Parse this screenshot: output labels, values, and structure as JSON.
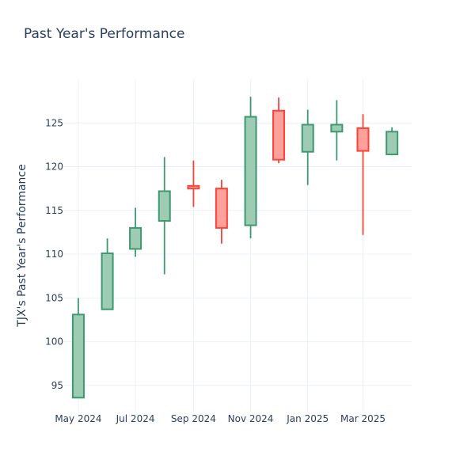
{
  "chart_data": {
    "type": "candlestick",
    "title": "Past Year's Performance",
    "ylabel": "TJX's Past Year's Performance",
    "xlabel": "",
    "ylim": [
      92,
      130
    ],
    "xlim": [
      "2024-04-15",
      "2025-04-22"
    ],
    "yticks": [
      95,
      100,
      105,
      110,
      115,
      120,
      125
    ],
    "xticks": [
      {
        "date": "2024-05-01",
        "label": "May 2024"
      },
      {
        "date": "2024-07-01",
        "label": "Jul 2024"
      },
      {
        "date": "2024-09-01",
        "label": "Sep 2024"
      },
      {
        "date": "2024-11-01",
        "label": "Nov 2024"
      },
      {
        "date": "2025-01-01",
        "label": "Jan 2025"
      },
      {
        "date": "2025-03-01",
        "label": "Mar 2025"
      }
    ],
    "grid": true,
    "increasing_color": "#3d9970",
    "increasing_fill": "#9ecbb4",
    "decreasing_color": "#ff4136",
    "decreasing_fill": "#ffa09b",
    "candles": [
      {
        "date": "2024-05-01",
        "open": 93.6,
        "high": 105.0,
        "low": 93.6,
        "close": 103.1
      },
      {
        "date": "2024-06-01",
        "open": 103.7,
        "high": 111.8,
        "low": 103.7,
        "close": 110.1
      },
      {
        "date": "2024-07-01",
        "open": 110.6,
        "high": 115.3,
        "low": 109.7,
        "close": 113.0
      },
      {
        "date": "2024-08-01",
        "open": 113.8,
        "high": 121.1,
        "low": 107.7,
        "close": 117.2
      },
      {
        "date": "2024-09-01",
        "open": 117.8,
        "high": 120.7,
        "low": 115.4,
        "close": 117.5
      },
      {
        "date": "2024-10-01",
        "open": 117.5,
        "high": 118.5,
        "low": 111.2,
        "close": 113.0
      },
      {
        "date": "2024-11-01",
        "open": 113.3,
        "high": 128.0,
        "low": 111.8,
        "close": 125.7
      },
      {
        "date": "2024-12-01",
        "open": 126.4,
        "high": 127.9,
        "low": 120.4,
        "close": 120.8
      },
      {
        "date": "2025-01-01",
        "open": 121.7,
        "high": 126.5,
        "low": 117.9,
        "close": 124.8
      },
      {
        "date": "2025-02-01",
        "open": 124.0,
        "high": 127.6,
        "low": 120.7,
        "close": 124.8
      },
      {
        "date": "2025-03-01",
        "open": 124.4,
        "high": 126.0,
        "low": 112.2,
        "close": 121.8
      },
      {
        "date": "2025-04-01",
        "open": 121.4,
        "high": 124.5,
        "low": 121.3,
        "close": 124.0
      }
    ]
  }
}
